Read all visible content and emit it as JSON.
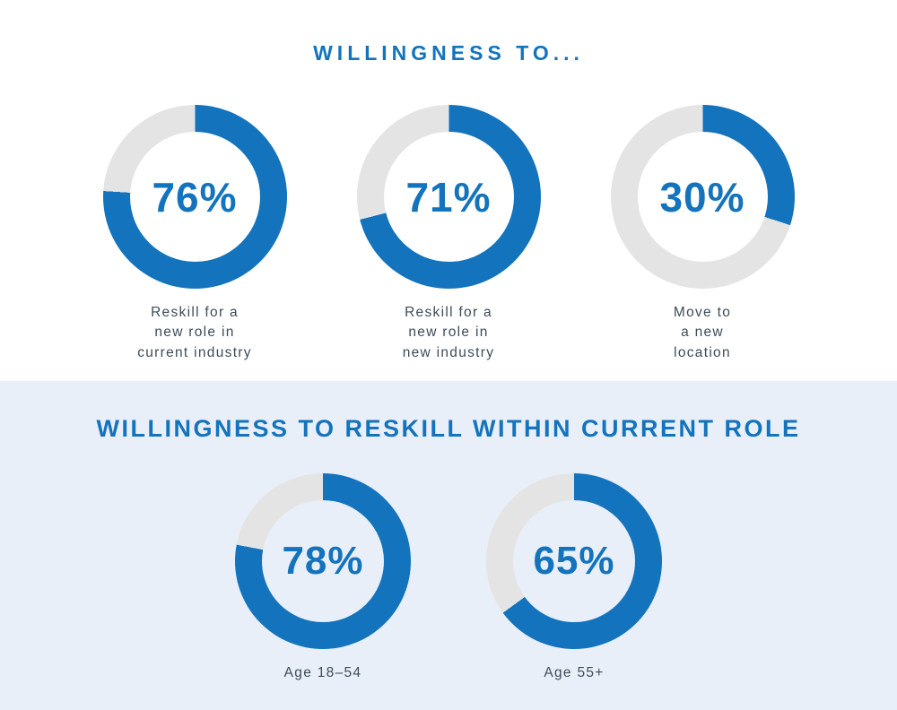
{
  "colors": {
    "blue": "#1373bd",
    "ring": "#e4e4e4",
    "panel": "#e9eff8",
    "ink": "#3c4c59"
  },
  "sections": {
    "top": {
      "title": "WILLINGNESS TO...",
      "charts": [
        {
          "pct": 76,
          "label": "76%",
          "caption": "Reskill for a\nnew role in\ncurrent industry"
        },
        {
          "pct": 71,
          "label": "71%",
          "caption": "Reskill for a\nnew role in\nnew industry"
        },
        {
          "pct": 30,
          "label": "30%",
          "caption": "Move to\na new\nlocation"
        }
      ]
    },
    "bottom": {
      "title": "WILLINGNESS TO RESKILL WITHIN CURRENT ROLE",
      "charts": [
        {
          "pct": 78,
          "label": "78%",
          "caption": "Age 18–54"
        },
        {
          "pct": 65,
          "label": "65%",
          "caption": "Age 55+"
        }
      ]
    }
  },
  "chart_data": [
    {
      "type": "pie",
      "subtype": "donut",
      "title": "WILLINGNESS TO...",
      "categories": [
        "Reskill for a new role in current industry",
        "Reskill for a new role in new industry",
        "Move to a new location"
      ],
      "values": [
        76,
        71,
        30
      ],
      "unit": "%",
      "value_labels": [
        "76%",
        "71%",
        "30%"
      ],
      "colors": {
        "filled": "#1373bd",
        "remainder": "#e4e4e4"
      },
      "arc_start": "12 o'clock, clockwise",
      "legend": "none"
    },
    {
      "type": "pie",
      "subtype": "donut",
      "title": "WILLINGNESS TO RESKILL WITHIN CURRENT ROLE",
      "categories": [
        "Age 18–54",
        "Age 55+"
      ],
      "values": [
        78,
        65
      ],
      "unit": "%",
      "value_labels": [
        "78%",
        "65%"
      ],
      "colors": {
        "filled": "#1373bd",
        "remainder": "#e4e4e4"
      },
      "arc_start": "12 o'clock, clockwise",
      "legend": "none"
    }
  ]
}
